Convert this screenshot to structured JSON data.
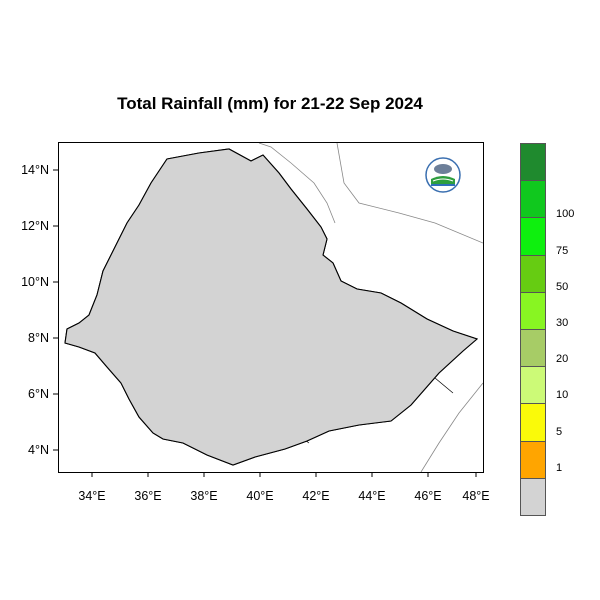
{
  "title": "Total Rainfall (mm) for 21-22 Sep 2024",
  "y_ticks": [
    "14°N",
    "12°N",
    "10°N",
    "8°N",
    "6°N",
    "4°N"
  ],
  "x_ticks": [
    "34°E",
    "36°E",
    "38°E",
    "40°E",
    "42°E",
    "44°E",
    "46°E",
    "48°E"
  ],
  "legend": {
    "colors": [
      "#1f8a2e",
      "#10c81e",
      "#0ef00e",
      "#66cc12",
      "#88f522",
      "#a7cc66",
      "#ccfa77",
      "#fafa09",
      "#ffa500",
      "#d3d3d3"
    ],
    "labels": [
      "100",
      "75",
      "50",
      "30",
      "20",
      "10",
      "5",
      "1"
    ]
  },
  "colors": {
    "land": "#d3d3d3",
    "light_rain": "#ffa500",
    "moderate_rain": "#fafa09",
    "heavier_rain": "#ccfa77",
    "heavy_rain": "#a7cc66"
  }
}
